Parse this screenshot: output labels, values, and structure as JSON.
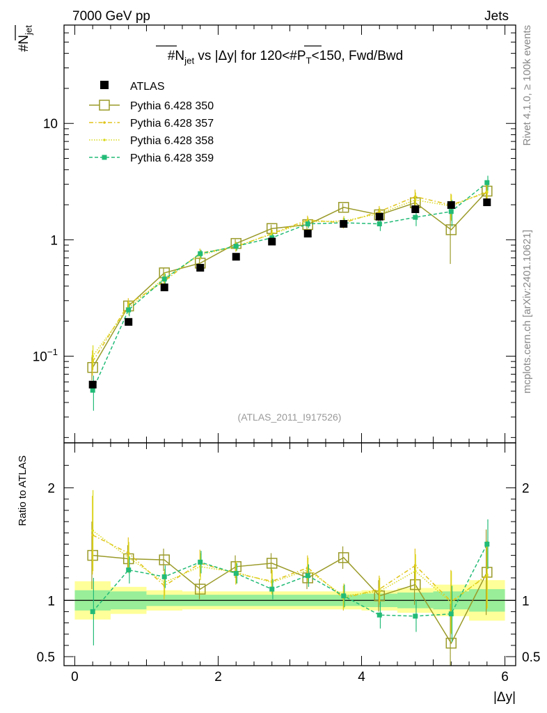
{
  "header": {
    "left": "7000 GeV pp",
    "right": "Jets"
  },
  "side": {
    "rivet": "Rivet 4.1.0, ≥ 100k events",
    "mcplots": "mcplots.cern.ch [arXiv:2401.10621]"
  },
  "chart_data": {
    "type": "scatter",
    "title": "#N_jet vs |Δy| for 120<#P_T<150, Fwd/Bwd",
    "title_parts": {
      "a": "#N",
      "a_sub": "jet",
      "b": " vs |Δy| for 120<#P",
      "b_sub": "T",
      "c": "<150, Fwd/Bwd"
    },
    "ylabel": "#N",
    "ylabel_sub": "jet",
    "xlabel": "|Δy|",
    "ratio_ylabel": "Ratio to ATLAS",
    "watermark": "(ATLAS_2011_I917526)",
    "xlim": [
      -0.15,
      6.15
    ],
    "ylim": [
      0.018,
      70
    ],
    "yscale": "log",
    "ratio_ylim": [
      0.42,
      2.4
    ],
    "x_ticks": [
      0,
      2,
      4,
      6
    ],
    "x_tick_labels": [
      "0",
      "2",
      "4",
      "6"
    ],
    "y_ticks": [
      0.1,
      1,
      10
    ],
    "y_tick_labels": [
      [
        "10",
        "−1"
      ],
      [
        "1",
        ""
      ],
      [
        "10",
        ""
      ]
    ],
    "ratio_ticks": [
      0.5,
      1,
      2
    ],
    "ratio_tick_labels": [
      "0.5",
      "1",
      "2"
    ],
    "x": [
      0.25,
      0.75,
      1.25,
      1.75,
      2.25,
      2.75,
      3.25,
      3.75,
      4.25,
      4.75,
      5.25,
      5.75
    ],
    "data": {
      "name": "ATLAS",
      "values": [
        0.057,
        0.197,
        0.39,
        0.575,
        0.715,
        0.965,
        1.13,
        1.37,
        1.58,
        1.83,
        1.99,
        2.1
      ],
      "band_stat": [
        0.09,
        0.08,
        0.05,
        0.05,
        0.05,
        0.05,
        0.05,
        0.05,
        0.06,
        0.07,
        0.08,
        0.1
      ],
      "band_total": [
        0.17,
        0.12,
        0.09,
        0.08,
        0.08,
        0.08,
        0.08,
        0.08,
        0.09,
        0.11,
        0.14,
        0.18
      ]
    },
    "series": [
      {
        "name": "Pythia 6.428 350",
        "color": "#9a9a29",
        "style": "solid",
        "marker": "open-square",
        "values": [
          0.08,
          0.27,
          0.52,
          0.63,
          0.93,
          1.25,
          1.35,
          1.9,
          1.64,
          2.08,
          1.22,
          2.62
        ],
        "errors": [
          0.018,
          0.03,
          0.05,
          0.06,
          0.08,
          0.1,
          0.12,
          0.15,
          0.2,
          0.3,
          0.6,
          0.5
        ],
        "ratio": [
          1.4,
          1.37,
          1.36,
          1.1,
          1.3,
          1.33,
          1.2,
          1.38,
          1.04,
          1.14,
          0.62,
          1.25
        ],
        "ratio_errors": [
          0.3,
          0.12,
          0.1,
          0.09,
          0.1,
          0.09,
          0.1,
          0.1,
          0.14,
          0.18,
          0.35,
          0.38
        ]
      },
      {
        "name": "Pythia 6.428 357",
        "color": "#e0c419",
        "style": "dashdot",
        "marker": "small-dot",
        "values": [
          0.09,
          0.28,
          0.44,
          0.77,
          0.87,
          1.13,
          1.48,
          1.4,
          1.75,
          2.35,
          1.99,
          2.55
        ],
        "errors": [
          0.022,
          0.035,
          0.05,
          0.07,
          0.08,
          0.1,
          0.13,
          0.15,
          0.2,
          0.35,
          0.5,
          0.6
        ],
        "ratio": [
          1.58,
          1.42,
          1.13,
          1.33,
          1.24,
          1.17,
          1.29,
          1.02,
          1.1,
          1.31,
          0.99,
          1.22
        ],
        "ratio_errors": [
          0.35,
          0.14,
          0.12,
          0.12,
          0.1,
          0.11,
          0.11,
          0.11,
          0.12,
          0.15,
          0.28,
          0.3
        ]
      },
      {
        "name": "Pythia 6.428 358",
        "color": "#d9d91a",
        "style": "dotted",
        "marker": "small-dot",
        "values": [
          0.1,
          0.26,
          0.47,
          0.74,
          0.88,
          1.12,
          1.43,
          1.45,
          1.68,
          2.2,
          1.95,
          2.6
        ],
        "errors": [
          0.024,
          0.035,
          0.05,
          0.07,
          0.08,
          0.1,
          0.13,
          0.15,
          0.2,
          0.35,
          0.5,
          0.6
        ],
        "ratio": [
          1.62,
          1.38,
          1.16,
          1.3,
          1.25,
          1.16,
          1.27,
          1.04,
          1.08,
          1.26,
          0.98,
          1.23
        ],
        "ratio_errors": [
          0.36,
          0.14,
          0.12,
          0.12,
          0.1,
          0.11,
          0.11,
          0.11,
          0.12,
          0.15,
          0.28,
          0.3
        ]
      },
      {
        "name": "Pythia 6.428 359",
        "color": "#22bb77",
        "style": "dashed",
        "marker": "filled-square",
        "values": [
          0.051,
          0.25,
          0.46,
          0.76,
          0.88,
          1.04,
          1.37,
          1.4,
          1.37,
          1.56,
          1.75,
          3.1
        ],
        "errors": [
          0.017,
          0.03,
          0.05,
          0.06,
          0.07,
          0.09,
          0.11,
          0.13,
          0.18,
          0.25,
          0.45,
          0.45
        ],
        "ratio": [
          0.9,
          1.27,
          1.21,
          1.34,
          1.24,
          1.1,
          1.22,
          1.04,
          0.87,
          0.86,
          0.88,
          1.5
        ],
        "ratio_errors": [
          0.3,
          0.12,
          0.1,
          0.1,
          0.09,
          0.09,
          0.1,
          0.1,
          0.12,
          0.14,
          0.25,
          0.22
        ]
      }
    ],
    "legend": {
      "placement": "top-left"
    }
  }
}
